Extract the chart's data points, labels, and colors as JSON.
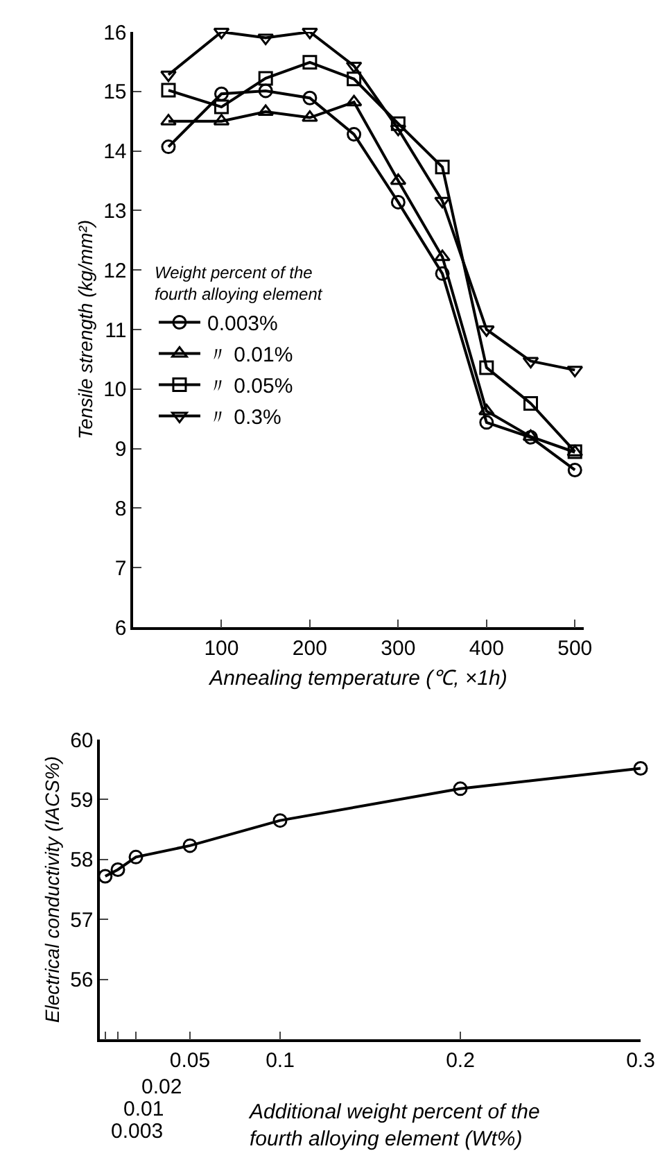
{
  "chart_data": [
    {
      "type": "line",
      "xlabel": "Annealing temperature (℃, ×1h)",
      "ylabel": "Tensile strength (kg/mm²)",
      "x": [
        40,
        100,
        150,
        200,
        250,
        300,
        350,
        400,
        450,
        500
      ],
      "xlim": [
        0,
        510
      ],
      "xticks": [
        100,
        200,
        300,
        400,
        500
      ],
      "ylim": [
        6,
        16
      ],
      "yticks": [
        6,
        7,
        8,
        9,
        10,
        11,
        12,
        13,
        14,
        15,
        16
      ],
      "grid": false,
      "legend": "left",
      "legend_title": "Weight percent of the fourth alloying element",
      "series": [
        {
          "name": "0.003%",
          "color": "#000000",
          "marker": "circle",
          "values": [
            14.07,
            14.96,
            15.01,
            14.89,
            14.28,
            13.14,
            11.94,
            9.44,
            9.19,
            8.64
          ]
        },
        {
          "name": "〃 0.01%",
          "color": "#000000",
          "marker": "triangle",
          "values": [
            14.5,
            14.5,
            14.66,
            14.56,
            14.82,
            13.5,
            12.22,
            9.63,
            9.2,
            8.94
          ]
        },
        {
          "name": "〃 0.05%",
          "color": "#000000",
          "marker": "square",
          "values": [
            15.02,
            14.74,
            15.22,
            15.49,
            15.21,
            14.46,
            13.73,
            10.36,
            9.76,
            8.95
          ]
        },
        {
          "name": "〃 0.3%",
          "color": "#000000",
          "marker": "triangle-down",
          "values": [
            15.28,
            16.0,
            15.9,
            16.0,
            15.43,
            14.37,
            13.16,
            11.0,
            10.47,
            10.32
          ]
        }
      ]
    },
    {
      "type": "line",
      "xlabel": "Additional weight percent of the fourth alloying element (Wt%)",
      "ylabel": "Electrical conductivity (IACS%)",
      "x": [
        0.003,
        0.01,
        0.02,
        0.05,
        0.1,
        0.2,
        0.3
      ],
      "xlim": [
        0,
        0.3
      ],
      "xticks": [
        {
          "value": 0.003,
          "label": null
        },
        {
          "value": 0.01,
          "label": null
        },
        {
          "value": 0.02,
          "label": null
        },
        0.05,
        0.1,
        0.2,
        0.3
      ],
      "ylim": [
        55,
        60
      ],
      "annotations": [
        "0.003",
        "0.01",
        "0.02"
      ],
      "yticks": [
        56,
        57,
        58,
        59,
        60
      ],
      "grid": false,
      "legend": false,
      "series": [
        {
          "color": "#000000",
          "marker": "circle",
          "values": [
            57.72,
            57.83,
            58.04,
            58.23,
            58.65,
            59.18,
            59.52
          ]
        }
      ]
    }
  ]
}
